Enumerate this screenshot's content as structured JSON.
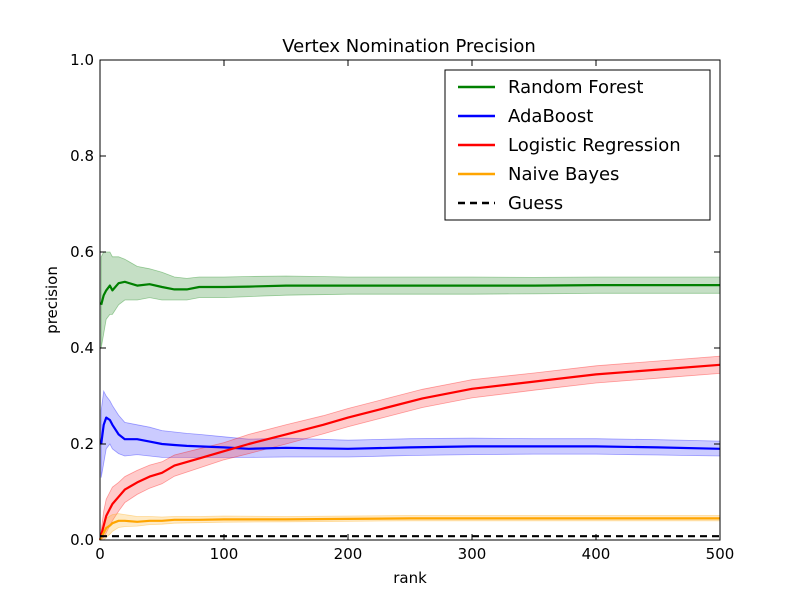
{
  "chart_data": {
    "type": "line",
    "title": "Vertex Nomination Precision",
    "xlabel": "rank",
    "ylabel": "precision",
    "xlim": [
      0,
      500
    ],
    "ylim": [
      0.0,
      1.0
    ],
    "xticks": [
      0,
      100,
      200,
      300,
      400,
      500
    ],
    "xtick_labels": [
      "0",
      "100",
      "200",
      "300",
      "400",
      "500"
    ],
    "yticks": [
      0.0,
      0.2,
      0.4,
      0.6,
      0.8,
      1.0
    ],
    "ytick_labels": [
      "0.0",
      "0.2",
      "0.4",
      "0.6",
      "0.8",
      "1.0"
    ],
    "legend_position": "top-right",
    "grid": false,
    "series": [
      {
        "name": "Random Forest",
        "color": "#008000",
        "band_color": "#2e8b2e",
        "style": "solid",
        "x": [
          1,
          3,
          5,
          8,
          10,
          15,
          20,
          30,
          40,
          50,
          60,
          70,
          80,
          100,
          120,
          150,
          200,
          250,
          300,
          350,
          400,
          450,
          500
        ],
        "y": [
          0.49,
          0.51,
          0.52,
          0.53,
          0.52,
          0.535,
          0.538,
          0.53,
          0.533,
          0.527,
          0.522,
          0.522,
          0.527,
          0.527,
          0.528,
          0.53,
          0.53,
          0.53,
          0.53,
          0.53,
          0.531,
          0.531,
          0.531
        ],
        "lower": [
          0.4,
          0.43,
          0.46,
          0.47,
          0.47,
          0.49,
          0.5,
          0.5,
          0.505,
          0.5,
          0.5,
          0.5,
          0.505,
          0.505,
          0.507,
          0.51,
          0.512,
          0.512,
          0.512,
          0.513,
          0.514,
          0.514,
          0.514
        ],
        "upper": [
          0.59,
          0.6,
          0.6,
          0.6,
          0.59,
          0.59,
          0.585,
          0.57,
          0.565,
          0.558,
          0.548,
          0.545,
          0.548,
          0.548,
          0.549,
          0.55,
          0.548,
          0.548,
          0.548,
          0.547,
          0.548,
          0.548,
          0.548
        ]
      },
      {
        "name": "AdaBoost",
        "color": "#0000ff",
        "band_color": "#4444ff",
        "style": "solid",
        "x": [
          1,
          3,
          5,
          8,
          10,
          15,
          20,
          30,
          40,
          50,
          60,
          70,
          80,
          100,
          120,
          150,
          200,
          250,
          300,
          350,
          400,
          450,
          500
        ],
        "y": [
          0.2,
          0.24,
          0.255,
          0.25,
          0.24,
          0.22,
          0.21,
          0.21,
          0.205,
          0.2,
          0.198,
          0.196,
          0.195,
          0.193,
          0.19,
          0.192,
          0.19,
          0.193,
          0.195,
          0.195,
          0.195,
          0.193,
          0.19
        ],
        "lower": [
          0.13,
          0.16,
          0.19,
          0.2,
          0.19,
          0.18,
          0.175,
          0.178,
          0.175,
          0.172,
          0.172,
          0.172,
          0.172,
          0.172,
          0.172,
          0.173,
          0.173,
          0.176,
          0.178,
          0.179,
          0.179,
          0.177,
          0.175
        ],
        "upper": [
          0.27,
          0.31,
          0.3,
          0.29,
          0.28,
          0.26,
          0.245,
          0.24,
          0.235,
          0.228,
          0.225,
          0.222,
          0.22,
          0.215,
          0.21,
          0.212,
          0.208,
          0.211,
          0.212,
          0.211,
          0.211,
          0.209,
          0.206
        ]
      },
      {
        "name": "Logistic Regression",
        "color": "#ff0000",
        "band_color": "#ff4444",
        "style": "solid",
        "x": [
          0,
          3,
          5,
          8,
          10,
          15,
          20,
          30,
          40,
          50,
          60,
          80,
          100,
          120,
          150,
          180,
          200,
          230,
          260,
          300,
          350,
          400,
          450,
          500
        ],
        "y": [
          0.0,
          0.03,
          0.05,
          0.065,
          0.075,
          0.09,
          0.105,
          0.12,
          0.132,
          0.14,
          0.155,
          0.17,
          0.185,
          0.2,
          0.22,
          0.24,
          0.255,
          0.275,
          0.295,
          0.315,
          0.33,
          0.345,
          0.355,
          0.365
        ],
        "lower": [
          0.0,
          0.005,
          0.015,
          0.03,
          0.04,
          0.06,
          0.078,
          0.095,
          0.108,
          0.117,
          0.133,
          0.15,
          0.167,
          0.18,
          0.2,
          0.221,
          0.236,
          0.256,
          0.276,
          0.296,
          0.312,
          0.327,
          0.337,
          0.347
        ],
        "upper": [
          0.0,
          0.06,
          0.085,
          0.1,
          0.11,
          0.12,
          0.132,
          0.145,
          0.156,
          0.163,
          0.177,
          0.19,
          0.203,
          0.22,
          0.24,
          0.259,
          0.274,
          0.294,
          0.314,
          0.334,
          0.348,
          0.363,
          0.373,
          0.383
        ]
      },
      {
        "name": "Naive Bayes",
        "color": "#ffa500",
        "band_color": "#ffb52e",
        "style": "solid",
        "x": [
          0,
          3,
          5,
          8,
          10,
          15,
          20,
          30,
          40,
          50,
          60,
          80,
          100,
          150,
          200,
          250,
          300,
          350,
          400,
          450,
          500
        ],
        "y": [
          0.0,
          0.015,
          0.025,
          0.03,
          0.035,
          0.04,
          0.04,
          0.038,
          0.04,
          0.04,
          0.042,
          0.042,
          0.043,
          0.043,
          0.044,
          0.045,
          0.045,
          0.045,
          0.045,
          0.045,
          0.045
        ],
        "lower": [
          0.0,
          0.0,
          0.005,
          0.012,
          0.018,
          0.026,
          0.028,
          0.029,
          0.032,
          0.033,
          0.035,
          0.036,
          0.037,
          0.038,
          0.039,
          0.04,
          0.04,
          0.04,
          0.04,
          0.04,
          0.04
        ],
        "upper": [
          0.0,
          0.035,
          0.045,
          0.05,
          0.053,
          0.055,
          0.053,
          0.049,
          0.049,
          0.048,
          0.049,
          0.049,
          0.05,
          0.049,
          0.05,
          0.051,
          0.051,
          0.051,
          0.051,
          0.051,
          0.051
        ]
      },
      {
        "name": "Guess",
        "color": "#000000",
        "style": "dashed",
        "x": [
          0,
          500
        ],
        "y": [
          0.008,
          0.008
        ]
      }
    ]
  }
}
